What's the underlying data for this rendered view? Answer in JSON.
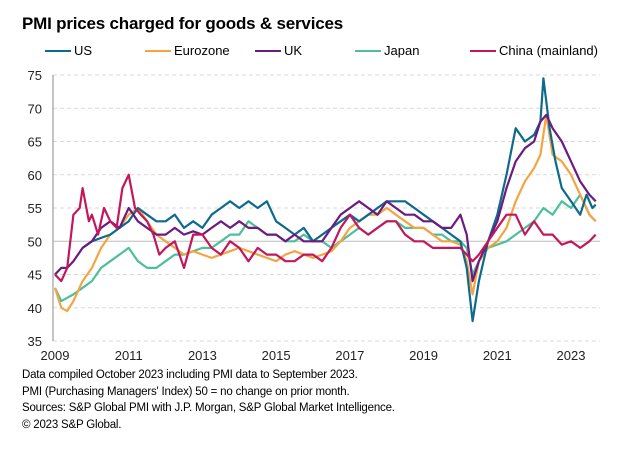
{
  "chart_data": {
    "type": "line",
    "title": "PMI prices charged for goods & services",
    "xlabel": "",
    "ylabel": "",
    "ylim": [
      35,
      75
    ],
    "xlim": [
      2009.0,
      2023.75
    ],
    "yticks": [
      "35",
      "40",
      "45",
      "50",
      "55",
      "60",
      "65",
      "70",
      "75"
    ],
    "xticks": [
      "2009",
      "2011",
      "2013",
      "2015",
      "2017",
      "2019",
      "2021",
      "2023"
    ],
    "grid": true,
    "reference_line": 50,
    "legend_position": "top",
    "series": [
      {
        "name": "US",
        "color": "#0e6a8c",
        "x": [
          2009.75,
          2010.0,
          2010.25,
          2010.5,
          2010.75,
          2011.0,
          2011.25,
          2011.5,
          2011.75,
          2012.0,
          2012.25,
          2012.5,
          2012.75,
          2013.0,
          2013.25,
          2013.5,
          2013.75,
          2014.0,
          2014.25,
          2014.5,
          2014.75,
          2015.0,
          2015.25,
          2015.5,
          2015.75,
          2016.0,
          2016.25,
          2016.5,
          2016.75,
          2017.0,
          2017.25,
          2017.5,
          2017.75,
          2018.0,
          2018.25,
          2018.5,
          2018.75,
          2019.0,
          2019.25,
          2019.5,
          2019.75,
          2020.0,
          2020.17,
          2020.33,
          2020.5,
          2020.75,
          2021.0,
          2021.25,
          2021.5,
          2021.75,
          2022.0,
          2022.17,
          2022.25,
          2022.42,
          2022.58,
          2022.75,
          2023.0,
          2023.25,
          2023.42,
          2023.58,
          2023.67
        ],
        "y": [
          49,
          50,
          50.5,
          51,
          52,
          53,
          55,
          54,
          53,
          53,
          54,
          52,
          53,
          52,
          54,
          55,
          56,
          55,
          56,
          55,
          56,
          53,
          52,
          51,
          52,
          50,
          51,
          52,
          53,
          54,
          53,
          54,
          55,
          56,
          56,
          56,
          55,
          54,
          53,
          52,
          51,
          50,
          46,
          38,
          44,
          50,
          54,
          60,
          67,
          65,
          66,
          68,
          74.5,
          67,
          62,
          58,
          56,
          54,
          57,
          55,
          55.5
        ]
      },
      {
        "name": "Eurozone",
        "color": "#f4a442",
        "x": [
          2009.0,
          2009.17,
          2009.33,
          2009.5,
          2009.75,
          2010.0,
          2010.25,
          2010.5,
          2010.75,
          2011.0,
          2011.25,
          2011.5,
          2011.75,
          2012.0,
          2012.25,
          2012.5,
          2012.75,
          2013.0,
          2013.25,
          2013.5,
          2013.75,
          2014.0,
          2014.25,
          2014.5,
          2014.75,
          2015.0,
          2015.25,
          2015.5,
          2015.75,
          2016.0,
          2016.25,
          2016.5,
          2016.75,
          2017.0,
          2017.25,
          2017.5,
          2017.75,
          2018.0,
          2018.25,
          2018.5,
          2018.75,
          2019.0,
          2019.25,
          2019.5,
          2019.75,
          2020.0,
          2020.17,
          2020.33,
          2020.5,
          2020.75,
          2021.0,
          2021.25,
          2021.5,
          2021.75,
          2022.0,
          2022.17,
          2022.33,
          2022.5,
          2022.75,
          2023.0,
          2023.25,
          2023.5,
          2023.67
        ],
        "y": [
          43,
          40,
          39.5,
          41,
          44,
          46,
          49,
          51,
          52,
          54,
          55,
          53,
          51,
          50,
          49,
          48,
          48.5,
          48,
          47.5,
          48,
          48.5,
          49,
          48.5,
          48,
          47.5,
          47,
          48,
          48.5,
          48,
          47.5,
          48,
          48.5,
          50,
          52,
          53,
          54,
          54,
          55,
          54,
          53,
          52,
          52,
          51,
          50,
          50,
          49.5,
          47,
          42,
          47,
          49,
          50,
          52,
          56,
          59,
          61,
          63,
          69,
          63,
          62,
          60,
          57,
          54,
          53
        ]
      },
      {
        "name": "UK",
        "color": "#6c1b7f",
        "x": [
          2009.0,
          2009.17,
          2009.33,
          2009.5,
          2009.75,
          2010.0,
          2010.25,
          2010.5,
          2010.75,
          2011.0,
          2011.25,
          2011.5,
          2011.75,
          2012.0,
          2012.25,
          2012.5,
          2012.75,
          2013.0,
          2013.25,
          2013.5,
          2013.75,
          2014.0,
          2014.25,
          2014.5,
          2014.75,
          2015.0,
          2015.25,
          2015.5,
          2015.75,
          2016.0,
          2016.25,
          2016.5,
          2016.75,
          2017.0,
          2017.25,
          2017.5,
          2017.75,
          2018.0,
          2018.25,
          2018.5,
          2018.75,
          2019.0,
          2019.25,
          2019.5,
          2019.75,
          2020.0,
          2020.17,
          2020.33,
          2020.5,
          2020.75,
          2021.0,
          2021.25,
          2021.5,
          2021.75,
          2022.0,
          2022.17,
          2022.33,
          2022.5,
          2022.75,
          2023.0,
          2023.25,
          2023.5,
          2023.67
        ],
        "y": [
          45,
          46,
          46,
          47,
          49,
          50,
          52,
          53,
          52,
          55,
          53,
          52,
          51,
          51,
          52,
          51,
          51.5,
          51,
          52,
          53,
          52,
          53,
          52,
          52,
          51,
          51,
          50,
          51,
          50,
          50,
          50,
          52,
          54,
          55,
          56,
          55,
          54,
          56,
          55,
          54,
          54,
          53,
          53,
          52,
          52,
          54,
          51,
          44,
          47,
          50,
          53,
          58,
          62,
          64,
          65,
          68,
          69,
          67,
          65,
          62,
          59,
          57,
          56
        ]
      },
      {
        "name": "Japan",
        "color": "#4dbf9a",
        "x": [
          2009.0,
          2009.17,
          2009.33,
          2009.5,
          2009.75,
          2010.0,
          2010.25,
          2010.5,
          2010.75,
          2011.0,
          2011.25,
          2011.5,
          2011.75,
          2012.0,
          2012.25,
          2012.5,
          2012.75,
          2013.0,
          2013.25,
          2013.5,
          2013.75,
          2014.0,
          2014.25,
          2014.5,
          2014.75,
          2015.0,
          2015.25,
          2015.5,
          2015.75,
          2016.0,
          2016.25,
          2016.5,
          2016.75,
          2017.0,
          2017.25,
          2017.5,
          2017.75,
          2018.0,
          2018.25,
          2018.5,
          2018.75,
          2019.0,
          2019.25,
          2019.5,
          2019.75,
          2020.0,
          2020.17,
          2020.33,
          2020.5,
          2020.75,
          2021.0,
          2021.25,
          2021.5,
          2021.75,
          2022.0,
          2022.25,
          2022.5,
          2022.75,
          2023.0,
          2023.25,
          2023.5,
          2023.67
        ],
        "y": [
          43,
          41,
          41.5,
          42,
          43,
          44,
          46,
          47,
          48,
          49,
          47,
          46,
          46,
          47,
          48,
          48,
          48.5,
          49,
          49,
          50,
          51,
          51,
          53,
          52,
          51,
          51,
          50,
          50,
          51,
          50,
          50,
          49,
          50,
          51,
          52,
          51,
          52,
          53,
          53,
          52,
          52,
          52,
          51,
          51,
          50,
          50,
          49,
          45,
          47,
          49,
          49.5,
          50,
          51,
          52,
          53,
          55,
          54,
          56,
          55,
          57,
          54,
          53
        ]
      },
      {
        "name": "China (mainland)",
        "color": "#c2185b",
        "x": [
          2009.0,
          2009.17,
          2009.33,
          2009.5,
          2009.67,
          2009.75,
          2009.92,
          2010.0,
          2010.17,
          2010.33,
          2010.5,
          2010.67,
          2010.83,
          2011.0,
          2011.17,
          2011.33,
          2011.5,
          2011.67,
          2011.83,
          2012.0,
          2012.25,
          2012.5,
          2012.75,
          2013.0,
          2013.25,
          2013.5,
          2013.75,
          2014.0,
          2014.25,
          2014.5,
          2014.75,
          2015.0,
          2015.25,
          2015.5,
          2015.75,
          2016.0,
          2016.25,
          2016.5,
          2016.75,
          2017.0,
          2017.25,
          2017.5,
          2017.75,
          2018.0,
          2018.25,
          2018.5,
          2018.75,
          2019.0,
          2019.25,
          2019.5,
          2019.75,
          2020.0,
          2020.17,
          2020.33,
          2020.5,
          2020.75,
          2021.0,
          2021.25,
          2021.5,
          2021.75,
          2022.0,
          2022.25,
          2022.5,
          2022.75,
          2023.0,
          2023.25,
          2023.5,
          2023.67
        ],
        "y": [
          45,
          44,
          46,
          54,
          55,
          58,
          53,
          54,
          51,
          55,
          53,
          52,
          58,
          60,
          55,
          54,
          53,
          51,
          48,
          49,
          50,
          46,
          51,
          51,
          49,
          48,
          50,
          49,
          47,
          49,
          48,
          48,
          47,
          47,
          48,
          48,
          47,
          49,
          52,
          54,
          52,
          51,
          52,
          53,
          53,
          51,
          50,
          50,
          49,
          49,
          49,
          49,
          48,
          47,
          48,
          50,
          52,
          54,
          54,
          51,
          53,
          51,
          51,
          49.5,
          50,
          49,
          50,
          51
        ]
      }
    ]
  },
  "header": {
    "title": "PMI prices charged for goods & services"
  },
  "notes": [
    "Data compiled October 2023 including PMI data to September 2023.",
    "PMI (Purchasing Managers' Index) 50 = no change on prior month.",
    "Sources: S&P Global PMI with J.P. Morgan, S&P Global Market Intelligence.",
    "© 2023 S&P Global."
  ]
}
